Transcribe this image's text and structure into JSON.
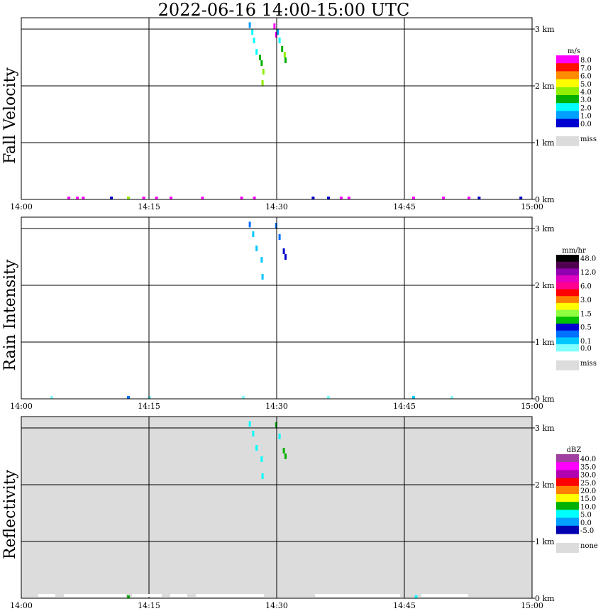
{
  "title": "2022-06-16   14:00-15:00 UTC",
  "x_ticks": [
    "14:00",
    "14:15",
    "14:30",
    "14:45",
    "15:00"
  ],
  "y_ticks": [
    "0 km",
    "1 km",
    "2 km",
    "3 km"
  ],
  "panels": [
    {
      "label": "Fall Velocity",
      "unit": "m/s",
      "background": "#ffffff",
      "legend": [
        {
          "color": "#ff00ff",
          "label": "8.0"
        },
        {
          "color": "#ff1000",
          "label": "7.0"
        },
        {
          "color": "#ff8c00",
          "label": "6.0"
        },
        {
          "color": "#ffff00",
          "label": "5.0"
        },
        {
          "color": "#90ee00",
          "label": "4.0"
        },
        {
          "color": "#00b000",
          "label": "3.0"
        },
        {
          "color": "#00ffff",
          "label": "2.0"
        },
        {
          "color": "#00a0ff",
          "label": "1.0"
        },
        {
          "color": "#0000d0",
          "label": "0.0"
        }
      ],
      "miss_label": "miss",
      "miss_color": "#dcdcdc"
    },
    {
      "label": "Rain Intensity",
      "unit": "mm/hr",
      "background": "#ffffff",
      "legend": [
        {
          "color": "#000000",
          "label": "48.0"
        },
        {
          "color": "#500050",
          "label": ""
        },
        {
          "color": "#9000b0",
          "label": "12.0"
        },
        {
          "color": "#e000c0",
          "label": ""
        },
        {
          "color": "#ff0090",
          "label": "6.0"
        },
        {
          "color": "#ff0000",
          "label": ""
        },
        {
          "color": "#ff8000",
          "label": "3.0"
        },
        {
          "color": "#ffff00",
          "label": ""
        },
        {
          "color": "#90ff40",
          "label": "1.5"
        },
        {
          "color": "#00c000",
          "label": ""
        },
        {
          "color": "#0000d0",
          "label": "0.5"
        },
        {
          "color": "#0070ff",
          "label": ""
        },
        {
          "color": "#00c8ff",
          "label": "0.1"
        },
        {
          "color": "#80ffff",
          "label": "0.0"
        }
      ],
      "miss_label": "miss",
      "miss_color": "#dcdcdc"
    },
    {
      "label": "Reflectivity",
      "unit": "dBZ",
      "background": "#dcdcdc",
      "legend": [
        {
          "color": "#a040a0",
          "label": "40.0"
        },
        {
          "color": "#ff00ff",
          "label": "35.0"
        },
        {
          "color": "#b000b0",
          "label": "30.0"
        },
        {
          "color": "#ff0000",
          "label": "25.0"
        },
        {
          "color": "#ff8000",
          "label": "20.0"
        },
        {
          "color": "#ffff00",
          "label": "15.0"
        },
        {
          "color": "#00b000",
          "label": "10.0"
        },
        {
          "color": "#00ffff",
          "label": "5.0"
        },
        {
          "color": "#00a0ff",
          "label": "0.0"
        },
        {
          "color": "#0000b0",
          "label": "-5.0"
        }
      ],
      "miss_label": "none",
      "miss_color": "#dcdcdc"
    }
  ],
  "chart_data": [
    {
      "type": "heatmap",
      "title": "2022-06-16   14:00-15:00 UTC",
      "ylabel": "Fall Velocity",
      "unit": "m/s",
      "x_range_min": [
        0,
        60
      ],
      "y_range_km": [
        0,
        3.2
      ],
      "grid": true,
      "cells": [
        {
          "t": 26.8,
          "h": 3.12,
          "v": 1.0
        },
        {
          "t": 27.1,
          "h": 3.0,
          "v": 1.5
        },
        {
          "t": 27.3,
          "h": 2.85,
          "v": 2.0
        },
        {
          "t": 27.6,
          "h": 2.65,
          "v": 2.2
        },
        {
          "t": 28.0,
          "h": 2.55,
          "v": 3.0
        },
        {
          "t": 28.2,
          "h": 2.45,
          "v": 2.5
        },
        {
          "t": 28.4,
          "h": 2.3,
          "v": 4.0
        },
        {
          "t": 28.3,
          "h": 2.1,
          "v": 3.5
        },
        {
          "t": 29.7,
          "h": 3.1,
          "v": 8.0
        },
        {
          "t": 29.9,
          "h": 2.95,
          "v": 8.0
        },
        {
          "t": 30.1,
          "h": 3.0,
          "v": 0.5
        },
        {
          "t": 30.3,
          "h": 2.85,
          "v": 2.0
        },
        {
          "t": 30.6,
          "h": 2.7,
          "v": 2.5
        },
        {
          "t": 30.9,
          "h": 2.6,
          "v": 3.5
        },
        {
          "t": 31.0,
          "h": 2.5,
          "v": 3.0
        },
        {
          "t": 5.5,
          "h": 0.0,
          "v": 8.0
        },
        {
          "t": 6.5,
          "h": 0.0,
          "v": 8.0
        },
        {
          "t": 7.2,
          "h": 0.0,
          "v": 8.0
        },
        {
          "t": 10.5,
          "h": 0.0,
          "v": 0.0
        },
        {
          "t": 12.5,
          "h": 0.0,
          "v": 4.0
        },
        {
          "t": 14.3,
          "h": 0.0,
          "v": 8.0
        },
        {
          "t": 15.8,
          "h": 0.0,
          "v": 8.0
        },
        {
          "t": 17.5,
          "h": 0.0,
          "v": 8.0
        },
        {
          "t": 21.2,
          "h": 0.0,
          "v": 8.0
        },
        {
          "t": 25.8,
          "h": 0.0,
          "v": 8.0
        },
        {
          "t": 27.3,
          "h": 0.0,
          "v": 8.0
        },
        {
          "t": 34.2,
          "h": 0.0,
          "v": 0.0
        },
        {
          "t": 36.0,
          "h": 0.0,
          "v": 0.0
        },
        {
          "t": 37.5,
          "h": 0.0,
          "v": 8.0
        },
        {
          "t": 38.4,
          "h": 0.0,
          "v": 8.0
        },
        {
          "t": 46.0,
          "h": 0.0,
          "v": 8.0
        },
        {
          "t": 49.5,
          "h": 0.0,
          "v": 8.0
        },
        {
          "t": 52.5,
          "h": 0.0,
          "v": 8.0
        },
        {
          "t": 53.7,
          "h": 0.0,
          "v": 0.0
        },
        {
          "t": 58.6,
          "h": 0.0,
          "v": 0.0
        }
      ]
    },
    {
      "type": "heatmap",
      "title": "",
      "ylabel": "Rain Intensity",
      "unit": "mm/hr",
      "x_range_min": [
        0,
        60
      ],
      "y_range_km": [
        0,
        3.2
      ],
      "grid": true,
      "cells": [
        {
          "t": 26.8,
          "h": 3.12,
          "v": 0.3
        },
        {
          "t": 27.2,
          "h": 2.95,
          "v": 0.1
        },
        {
          "t": 27.6,
          "h": 2.7,
          "v": 0.1
        },
        {
          "t": 28.2,
          "h": 2.5,
          "v": 0.1
        },
        {
          "t": 28.3,
          "h": 2.2,
          "v": 0.1
        },
        {
          "t": 29.9,
          "h": 3.1,
          "v": 0.3
        },
        {
          "t": 30.3,
          "h": 2.9,
          "v": 0.3
        },
        {
          "t": 30.8,
          "h": 2.65,
          "v": 0.5
        },
        {
          "t": 31.0,
          "h": 2.55,
          "v": 0.4
        },
        {
          "t": 3.5,
          "h": 0.0,
          "v": 0.05
        },
        {
          "t": 12.5,
          "h": 0.0,
          "v": 0.3
        },
        {
          "t": 15.0,
          "h": 0.0,
          "v": 0.05
        },
        {
          "t": 26.0,
          "h": 0.0,
          "v": 0.05
        },
        {
          "t": 36.0,
          "h": 0.0,
          "v": 0.05
        },
        {
          "t": 46.0,
          "h": 0.0,
          "v": 0.1
        },
        {
          "t": 50.5,
          "h": 0.0,
          "v": 0.05
        }
      ]
    },
    {
      "type": "heatmap",
      "title": "",
      "ylabel": "Reflectivity",
      "unit": "dBZ",
      "x_range_min": [
        0,
        60
      ],
      "y_range_km": [
        0,
        3.2
      ],
      "grid": true,
      "cells": [
        {
          "t": 26.8,
          "h": 3.12,
          "v": 5.0
        },
        {
          "t": 27.2,
          "h": 2.95,
          "v": 5.0
        },
        {
          "t": 27.6,
          "h": 2.7,
          "v": 5.0
        },
        {
          "t": 28.2,
          "h": 2.5,
          "v": 5.0
        },
        {
          "t": 28.3,
          "h": 2.2,
          "v": 5.0
        },
        {
          "t": 29.9,
          "h": 3.1,
          "v": 10.0
        },
        {
          "t": 30.3,
          "h": 2.9,
          "v": 5.0
        },
        {
          "t": 30.8,
          "h": 2.65,
          "v": 12.0
        },
        {
          "t": 31.0,
          "h": 2.55,
          "v": 12.0
        },
        {
          "t": 12.5,
          "h": 0.0,
          "v": 12.0
        },
        {
          "t": 46.3,
          "h": 0.0,
          "v": 5.0
        }
      ]
    }
  ]
}
